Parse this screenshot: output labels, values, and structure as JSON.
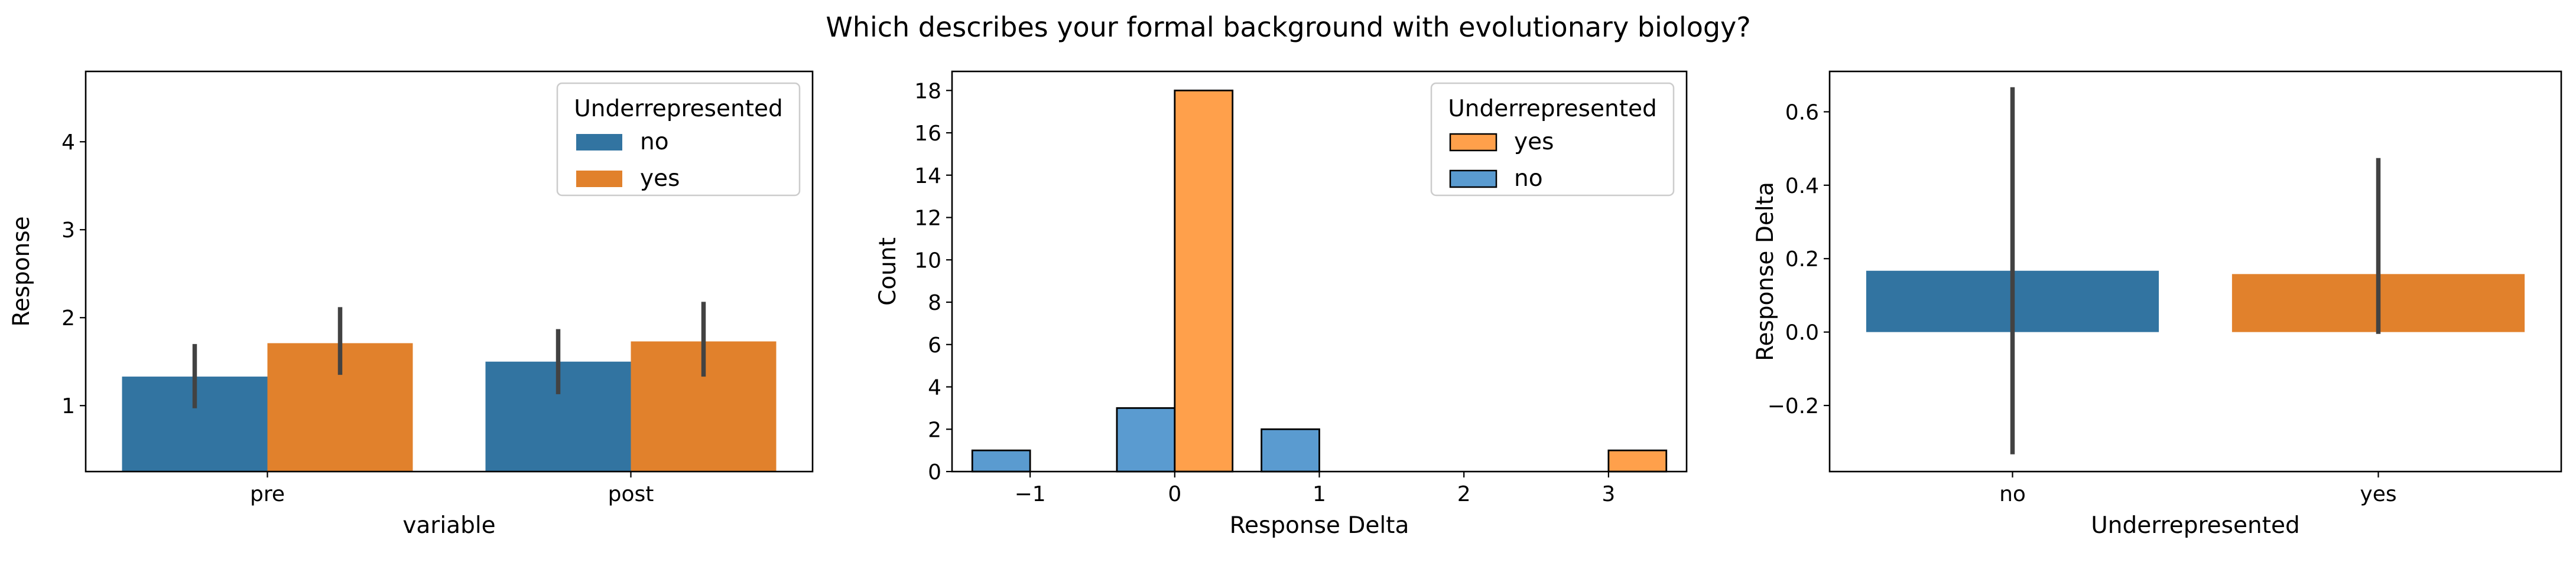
{
  "title": "Which describes your formal background with evolutionary biology?",
  "colors": {
    "no": "#3274a1",
    "yes": "#e1812c",
    "hist_no": "#5a9bd0",
    "hist_yes": "#ffa04b",
    "errorbar": "#424242"
  },
  "chart_data": [
    {
      "type": "bar",
      "categories": [
        "pre",
        "post"
      ],
      "series": [
        {
          "name": "no",
          "values": [
            1.33,
            1.5
          ],
          "ci": [
            [
              0.97,
              1.7
            ],
            [
              1.13,
              1.87
            ]
          ]
        },
        {
          "name": "yes",
          "values": [
            1.71,
            1.73
          ],
          "ci": [
            [
              1.35,
              2.12
            ],
            [
              1.33,
              2.18
            ]
          ]
        }
      ],
      "xlabel": "variable",
      "ylabel": "Response",
      "ylim": [
        0.25,
        4.8
      ],
      "yticks": [
        1,
        2,
        3,
        4
      ],
      "legend_title": "Underrepresented",
      "legend": "top-right",
      "grid": false
    },
    {
      "type": "bar",
      "categories": [
        "-1",
        "0",
        "1",
        "2",
        "3"
      ],
      "series": [
        {
          "name": "yes",
          "values": [
            0,
            18,
            0,
            0,
            1
          ]
        },
        {
          "name": "no",
          "values": [
            1,
            3,
            2,
            0,
            0
          ]
        }
      ],
      "xlabel": "Response Delta",
      "ylabel": "Count",
      "ylim": [
        0,
        18.9
      ],
      "yticks": [
        0,
        2,
        4,
        6,
        8,
        10,
        12,
        14,
        16,
        18
      ],
      "xticks": [
        "−1",
        "0",
        "1",
        "2",
        "3"
      ],
      "legend_title": "Underrepresented",
      "legend": "top-right",
      "grid": false
    },
    {
      "type": "bar",
      "categories": [
        "no",
        "yes"
      ],
      "values": [
        0.167,
        0.158
      ],
      "ci": [
        [
          -0.333,
          0.667
        ],
        [
          -0.005,
          0.474
        ]
      ],
      "xlabel": "Underrepresented",
      "ylabel": "Response Delta",
      "ylim": [
        -0.38,
        0.71
      ],
      "yticks": [
        -0.2,
        0.0,
        0.2,
        0.4,
        0.6
      ],
      "ytick_labels": [
        "−0.2",
        "0.0",
        "0.2",
        "0.4",
        "0.6"
      ],
      "grid": false
    }
  ]
}
